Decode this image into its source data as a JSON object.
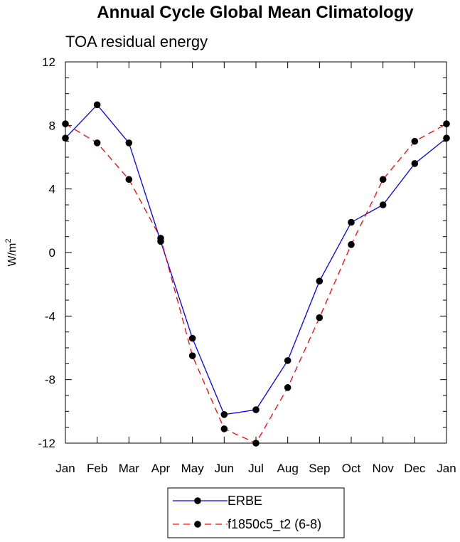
{
  "chart_data": {
    "type": "line",
    "title": "Annual Cycle Global Mean Climatology",
    "subtitle": "TOA residual energy",
    "xlabel": "",
    "ylabel": "W/m",
    "ylabel_superscript": "2",
    "categories": [
      "Jan",
      "Feb",
      "Mar",
      "Apr",
      "May",
      "Jun",
      "Jul",
      "Aug",
      "Sep",
      "Oct",
      "Nov",
      "Dec",
      "Jan"
    ],
    "ylim": [
      -12,
      12
    ],
    "yticks": [
      "12",
      "8",
      "4",
      "0",
      "-4",
      "-8",
      "-12"
    ],
    "series": [
      {
        "name": "ERBE",
        "color": "#0000ff",
        "dash": "solid",
        "values": [
          7.2,
          9.3,
          6.9,
          0.7,
          -5.4,
          -10.2,
          -9.9,
          -6.8,
          -1.8,
          1.9,
          3.0,
          5.6,
          7.2
        ]
      },
      {
        "name": "f1850c5_t2 (6-8)",
        "color": "#ff0000",
        "dash": "dashed",
        "values": [
          8.1,
          6.9,
          4.6,
          0.9,
          -6.5,
          -11.1,
          -12.0,
          -8.5,
          -4.1,
          0.5,
          4.6,
          7.0,
          8.1
        ]
      }
    ],
    "legend_position": "bottom-center",
    "grid": false
  }
}
